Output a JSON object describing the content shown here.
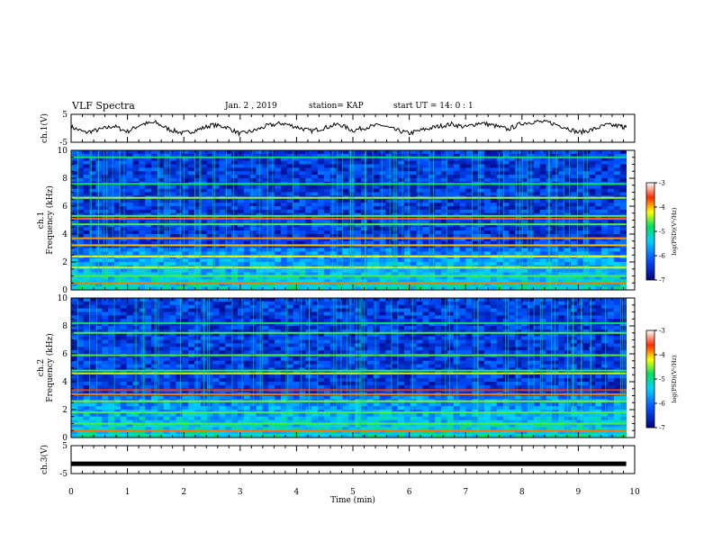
{
  "header": {
    "title": "VLF Spectra",
    "date": "Jan. 2 , 2019",
    "station": "station= KAP",
    "start": "start UT =  14: 0 : 1"
  },
  "colors": {
    "trace": "#000000",
    "spectrogram_low": "#0a0a8c",
    "spectrogram_mid": "#1e90ff",
    "spectrogram_high": "#00e060",
    "spectrogram_peak": "#ffff00",
    "spectrogram_max": "#ff2000"
  },
  "chart_data": [
    {
      "type": "line",
      "panel": "ch1",
      "ylabel": "ch.1(V)",
      "yticks": [
        "5",
        "-5"
      ],
      "ylim": [
        -5,
        5
      ],
      "x": [
        0,
        0.25,
        0.5,
        0.75,
        1.0,
        1.25,
        1.5,
        1.75,
        2.0,
        2.25,
        2.5,
        2.75,
        3.0,
        3.25,
        3.5,
        3.75,
        4.0,
        4.25,
        4.5,
        4.75,
        5.0,
        5.25,
        5.5,
        5.75,
        6.0,
        6.25,
        6.5,
        6.75,
        7.0,
        7.25,
        7.5,
        7.75,
        8.0,
        8.25,
        8.5,
        8.75,
        9.0,
        9.25,
        9.5,
        9.75,
        9.85
      ],
      "y": [
        0.5,
        -1.5,
        -0.5,
        0.8,
        -1.2,
        1.5,
        2.0,
        -0.5,
        -1.8,
        -0.5,
        1.2,
        0.5,
        -2.0,
        -0.8,
        1.0,
        1.8,
        0.5,
        -1.0,
        0.2,
        1.5,
        -0.8,
        0.4,
        1.2,
        -0.6,
        -1.8,
        -0.5,
        0.6,
        1.5,
        0.4,
        2.0,
        1.0,
        -0.4,
        1.8,
        2.4,
        2.0,
        0.5,
        -1.5,
        -0.5,
        1.2,
        0.8,
        0.3
      ]
    },
    {
      "type": "heatmap",
      "panel": "ch1",
      "ylabel": "Frequency (kHz)",
      "channel_label": "ch.1",
      "yticks": [
        "0",
        "2",
        "4",
        "6",
        "8",
        "10"
      ],
      "ylim": [
        0,
        10
      ],
      "colorbar_label": "log(PSD)(V²/Hz)",
      "colorbar_ticks": [
        "-3",
        "-4",
        "-5",
        "-6",
        "-7"
      ],
      "zlim": [
        -7,
        -3
      ],
      "bands_khz": [
        0.5,
        1.0,
        1.6,
        2.4,
        3.2,
        3.7,
        4.7,
        5.1,
        5.3,
        6.6,
        7.6,
        9.5
      ],
      "band_levels": [
        -3.8,
        -4.6,
        -4.3,
        -4.2,
        -4.0,
        -3.9,
        -4.6,
        -3.5,
        -4.6,
        -4.4,
        -4.8,
        -4.9
      ]
    },
    {
      "type": "heatmap",
      "panel": "ch2",
      "ylabel": "Frequency (kHz)",
      "channel_label": "ch.2",
      "yticks": [
        "0",
        "2",
        "4",
        "6",
        "8",
        "10"
      ],
      "ylim": [
        0,
        10
      ],
      "colorbar_label": "log(PSD)(V²/Hz)",
      "colorbar_ticks": [
        "-3",
        "-4",
        "-5",
        "-6",
        "-7"
      ],
      "zlim": [
        -7,
        -3
      ],
      "bands_khz": [
        0.5,
        1.0,
        1.8,
        2.6,
        3.1,
        3.4,
        4.6,
        4.8,
        5.9,
        7.5,
        8.2
      ],
      "band_levels": [
        -3.8,
        -4.6,
        -4.6,
        -4.5,
        -3.8,
        -3.6,
        -4.3,
        -4.7,
        -4.6,
        -4.6,
        -4.9
      ]
    },
    {
      "type": "line",
      "panel": "ch3",
      "ylabel": "ch.3(V)",
      "yticks": [
        "5",
        "-5"
      ],
      "ylim": [
        -5,
        5
      ],
      "x": [
        0,
        9.85
      ],
      "y": [
        -1.5,
        -1.5
      ]
    }
  ],
  "xaxis": {
    "label": "Time (min)",
    "ticks": [
      "0",
      "1",
      "2",
      "3",
      "4",
      "5",
      "6",
      "7",
      "8",
      "9",
      "10"
    ],
    "xlim": [
      0,
      10
    ]
  }
}
